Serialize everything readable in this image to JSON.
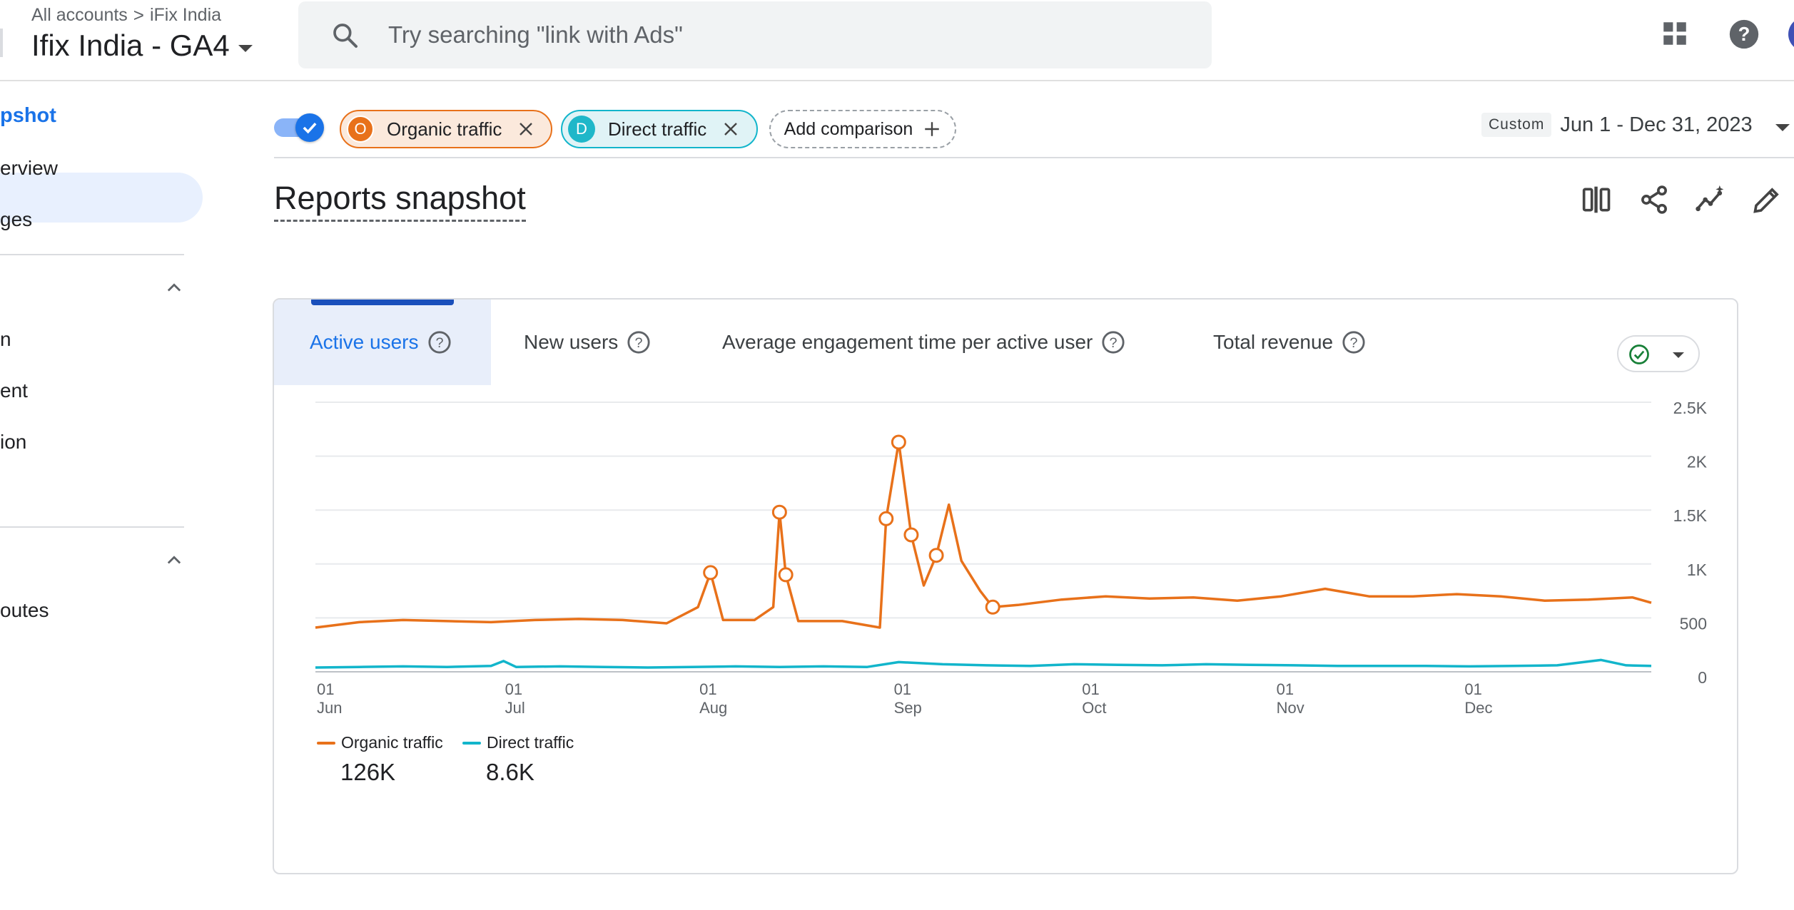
{
  "header": {
    "breadcrumb_root": "All accounts",
    "breadcrumb_sep": ">",
    "breadcrumb_account": "iFix India",
    "property_title": "Ifix India - GA4",
    "search_placeholder": "Try searching \"link with Ads\""
  },
  "sidebar": {
    "active_item": "pshot",
    "items": [
      {
        "label": "erview"
      },
      {
        "label": "ges"
      },
      {
        "label": "n"
      },
      {
        "label": "ent"
      },
      {
        "label": "ion"
      },
      {
        "label": "outes"
      }
    ]
  },
  "comparisons": {
    "chips": [
      {
        "letter": "O",
        "label": "Organic traffic"
      },
      {
        "letter": "D",
        "label": "Direct traffic"
      }
    ],
    "add_label": "Add comparison",
    "date_mode": "Custom",
    "date_range": "Jun 1 - Dec 31, 2023"
  },
  "page": {
    "title": "Reports snapshot"
  },
  "card": {
    "tabs": [
      {
        "label": "Active users"
      },
      {
        "label": "New users"
      },
      {
        "label": "Average engagement time per active user"
      },
      {
        "label": "Total revenue"
      }
    ],
    "totals": [
      {
        "series": "Organic traffic",
        "value": "126K"
      },
      {
        "series": "Direct traffic",
        "value": "8.6K"
      }
    ]
  },
  "colors": {
    "organic": "#e8711a",
    "direct": "#12b5cb",
    "accent": "#1a73e8"
  },
  "chart_data": {
    "type": "line",
    "x_range": [
      "2023-06-01",
      "2023-12-31"
    ],
    "ylim": [
      0,
      2500
    ],
    "y_ticks": [
      "2.5K",
      "2K",
      "1.5K",
      "1K",
      "500",
      "0"
    ],
    "y_tick_values": [
      2500,
      2000,
      1500,
      1000,
      500,
      0
    ],
    "x_ticks": [
      {
        "day": "01",
        "month": "Jun",
        "date": "2023-06-01"
      },
      {
        "day": "01",
        "month": "Jul",
        "date": "2023-07-01"
      },
      {
        "day": "01",
        "month": "Aug",
        "date": "2023-08-01"
      },
      {
        "day": "01",
        "month": "Sep",
        "date": "2023-09-01"
      },
      {
        "day": "01",
        "month": "Oct",
        "date": "2023-10-01"
      },
      {
        "day": "01",
        "month": "Nov",
        "date": "2023-11-01"
      },
      {
        "day": "01",
        "month": "Dec",
        "date": "2023-12-01"
      }
    ],
    "grid": true,
    "legend_position": "bottom-left",
    "series": [
      {
        "name": "Organic traffic",
        "color": "#e8711a",
        "points": [
          [
            "2023-06-01",
            410
          ],
          [
            "2023-06-08",
            460
          ],
          [
            "2023-06-15",
            480
          ],
          [
            "2023-06-22",
            470
          ],
          [
            "2023-06-29",
            460
          ],
          [
            "2023-07-06",
            480
          ],
          [
            "2023-07-13",
            490
          ],
          [
            "2023-07-20",
            480
          ],
          [
            "2023-07-27",
            450
          ],
          [
            "2023-08-01",
            600
          ],
          [
            "2023-08-03",
            920
          ],
          [
            "2023-08-05",
            480
          ],
          [
            "2023-08-10",
            480
          ],
          [
            "2023-08-13",
            600
          ],
          [
            "2023-08-14",
            1480
          ],
          [
            "2023-08-15",
            900
          ],
          [
            "2023-08-17",
            470
          ],
          [
            "2023-08-24",
            470
          ],
          [
            "2023-08-30",
            410
          ],
          [
            "2023-08-31",
            1420
          ],
          [
            "2023-09-02",
            2130
          ],
          [
            "2023-09-04",
            1270
          ],
          [
            "2023-09-06",
            800
          ],
          [
            "2023-09-08",
            1080
          ],
          [
            "2023-09-10",
            1550
          ],
          [
            "2023-09-12",
            1030
          ],
          [
            "2023-09-15",
            750
          ],
          [
            "2023-09-17",
            600
          ],
          [
            "2023-09-21",
            620
          ],
          [
            "2023-09-28",
            670
          ],
          [
            "2023-10-05",
            700
          ],
          [
            "2023-10-12",
            680
          ],
          [
            "2023-10-19",
            690
          ],
          [
            "2023-10-26",
            660
          ],
          [
            "2023-11-02",
            700
          ],
          [
            "2023-11-09",
            770
          ],
          [
            "2023-11-16",
            700
          ],
          [
            "2023-11-23",
            700
          ],
          [
            "2023-11-30",
            720
          ],
          [
            "2023-12-07",
            700
          ],
          [
            "2023-12-14",
            660
          ],
          [
            "2023-12-21",
            670
          ],
          [
            "2023-12-28",
            690
          ],
          [
            "2023-12-31",
            640
          ]
        ],
        "markers": [
          [
            "2023-08-03",
            920
          ],
          [
            "2023-08-14",
            1480
          ],
          [
            "2023-08-15",
            900
          ],
          [
            "2023-08-31",
            1420
          ],
          [
            "2023-09-02",
            2130
          ],
          [
            "2023-09-04",
            1270
          ],
          [
            "2023-09-08",
            1080
          ],
          [
            "2023-09-17",
            600
          ]
        ]
      },
      {
        "name": "Direct traffic",
        "color": "#12b5cb",
        "points": [
          [
            "2023-06-01",
            40
          ],
          [
            "2023-06-08",
            45
          ],
          [
            "2023-06-15",
            50
          ],
          [
            "2023-06-22",
            45
          ],
          [
            "2023-06-29",
            55
          ],
          [
            "2023-07-01",
            100
          ],
          [
            "2023-07-03",
            45
          ],
          [
            "2023-07-10",
            50
          ],
          [
            "2023-07-17",
            45
          ],
          [
            "2023-07-24",
            40
          ],
          [
            "2023-07-31",
            45
          ],
          [
            "2023-08-07",
            50
          ],
          [
            "2023-08-14",
            45
          ],
          [
            "2023-08-21",
            50
          ],
          [
            "2023-08-28",
            45
          ],
          [
            "2023-09-02",
            90
          ],
          [
            "2023-09-09",
            70
          ],
          [
            "2023-09-16",
            60
          ],
          [
            "2023-09-23",
            55
          ],
          [
            "2023-09-30",
            70
          ],
          [
            "2023-10-07",
            65
          ],
          [
            "2023-10-14",
            60
          ],
          [
            "2023-10-21",
            70
          ],
          [
            "2023-10-28",
            65
          ],
          [
            "2023-11-04",
            60
          ],
          [
            "2023-11-11",
            55
          ],
          [
            "2023-11-18",
            55
          ],
          [
            "2023-11-25",
            55
          ],
          [
            "2023-12-02",
            50
          ],
          [
            "2023-12-09",
            55
          ],
          [
            "2023-12-16",
            60
          ],
          [
            "2023-12-23",
            110
          ],
          [
            "2023-12-27",
            60
          ],
          [
            "2023-12-31",
            55
          ]
        ]
      }
    ]
  }
}
